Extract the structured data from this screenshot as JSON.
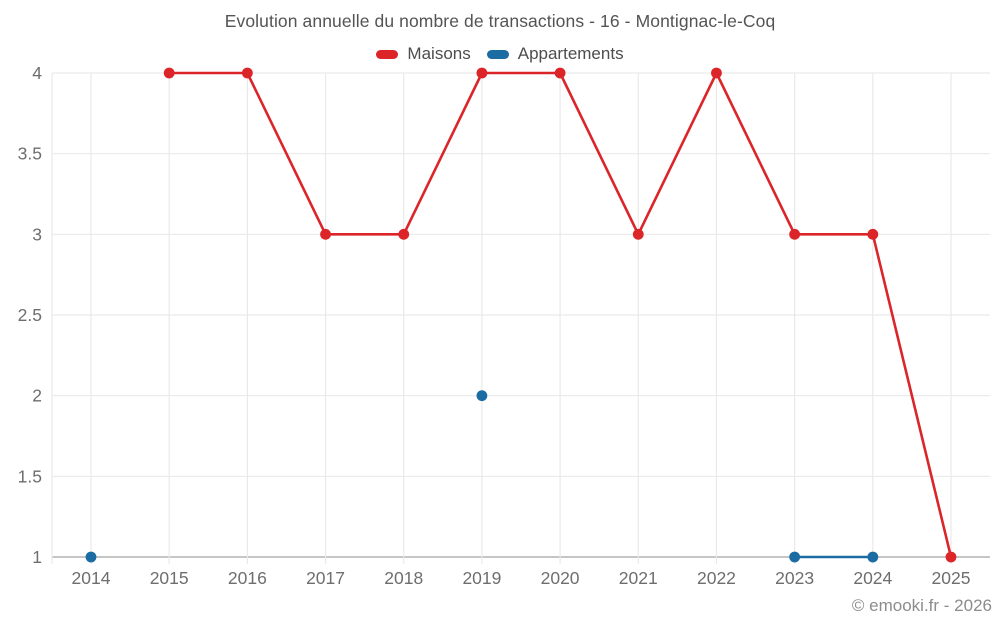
{
  "title": "Evolution annuelle du nombre de transactions - 16 - Montignac-le-Coq",
  "copyright": "© emooki.fr - 2026",
  "colors": {
    "maisons": "#db2529",
    "appartements": "#1b6ca3",
    "grid": "#e9e9e9",
    "axis": "#b2b2b2",
    "tick_label": "#6e6e6e"
  },
  "chart_data": {
    "type": "line",
    "title": "Evolution annuelle du nombre de transactions - 16 - Montignac-le-Coq",
    "x": [
      "2014",
      "2015",
      "2016",
      "2017",
      "2018",
      "2019",
      "2020",
      "2021",
      "2022",
      "2023",
      "2024",
      "2025"
    ],
    "series": [
      {
        "name": "Maisons",
        "color": "#db2529",
        "values": [
          null,
          4,
          4,
          3,
          3,
          4,
          4,
          3,
          4,
          3,
          3,
          1
        ]
      },
      {
        "name": "Appartements",
        "color": "#1b6ca3",
        "values": [
          1,
          null,
          null,
          null,
          null,
          2,
          null,
          null,
          null,
          1,
          1,
          null
        ]
      }
    ],
    "ylim": [
      1,
      4
    ],
    "yticks": [
      1,
      1.5,
      2,
      2.5,
      3,
      3.5,
      4
    ],
    "xlabel": "",
    "ylabel": "",
    "grid": true,
    "legend_position": "top"
  }
}
